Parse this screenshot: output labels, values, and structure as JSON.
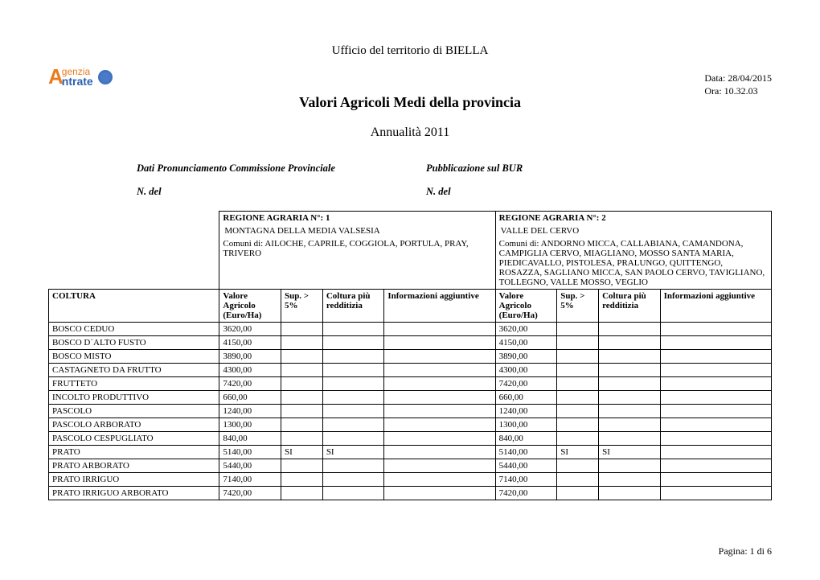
{
  "header": {
    "ufficio": "Ufficio del territorio di  BIELLA",
    "data_label": "Data: 28/04/2015",
    "ora_label": "Ora: 10.32.03",
    "title": "Valori Agricoli Medi della provincia",
    "annualita": "Annualità  2011"
  },
  "meta": {
    "dati_pronunciamento": "Dati Pronunciamento Commissione Provinciale",
    "pubblicazione": "Pubblicazione sul BUR",
    "n_del_left": "N. del",
    "n_del_right": "N. del"
  },
  "regions": {
    "r1": {
      "header": "REGIONE AGRARIA N°:  1",
      "name": "MONTAGNA DELLA MEDIA VALSESIA",
      "comuni": "Comuni di: AILOCHE, CAPRILE, COGGIOLA, PORTULA, PRAY, TRIVERO"
    },
    "r2": {
      "header": "REGIONE AGRARIA N°: 2",
      "name": "VALLE DEL CERVO",
      "comuni": "Comuni di: ANDORNO MICCA, CALLABIANA, CAMANDONA, CAMPIGLIA CERVO, MIAGLIANO, MOSSO SANTA MARIA, PIEDICAVALLO, PISTOLESA, PRALUNGO, QUITTENGO, ROSAZZA, SAGLIANO MICCA, SAN PAOLO CERVO, TAVIGLIANO, TOLLEGNO, VALLE MOSSO, VEGLIO"
    }
  },
  "columns": {
    "coltura": "COLTURA",
    "valore": "Valore Agricolo (Euro/Ha)",
    "sup": "Sup. > 5%",
    "redditizia": "Coltura più redditizia",
    "info": "Informazioni aggiuntive"
  },
  "rows": [
    {
      "coltura": "BOSCO CEDUO",
      "v1": "3620,00",
      "s1": "",
      "r1": "",
      "i1": "",
      "v2": "3620,00",
      "s2": "",
      "r2": "",
      "i2": ""
    },
    {
      "coltura": "BOSCO D`ALTO FUSTO",
      "v1": "4150,00",
      "s1": "",
      "r1": "",
      "i1": "",
      "v2": "4150,00",
      "s2": "",
      "r2": "",
      "i2": ""
    },
    {
      "coltura": "BOSCO MISTO",
      "v1": "3890,00",
      "s1": "",
      "r1": "",
      "i1": "",
      "v2": "3890,00",
      "s2": "",
      "r2": "",
      "i2": ""
    },
    {
      "coltura": "CASTAGNETO DA FRUTTO",
      "v1": "4300,00",
      "s1": "",
      "r1": "",
      "i1": "",
      "v2": "4300,00",
      "s2": "",
      "r2": "",
      "i2": ""
    },
    {
      "coltura": "FRUTTETO",
      "v1": "7420,00",
      "s1": "",
      "r1": "",
      "i1": "",
      "v2": "7420,00",
      "s2": "",
      "r2": "",
      "i2": ""
    },
    {
      "coltura": "INCOLTO PRODUTTIVO",
      "v1": "660,00",
      "s1": "",
      "r1": "",
      "i1": "",
      "v2": "660,00",
      "s2": "",
      "r2": "",
      "i2": ""
    },
    {
      "coltura": "PASCOLO",
      "v1": "1240,00",
      "s1": "",
      "r1": "",
      "i1": "",
      "v2": "1240,00",
      "s2": "",
      "r2": "",
      "i2": ""
    },
    {
      "coltura": "PASCOLO ARBORATO",
      "v1": "1300,00",
      "s1": "",
      "r1": "",
      "i1": "",
      "v2": "1300,00",
      "s2": "",
      "r2": "",
      "i2": ""
    },
    {
      "coltura": "PASCOLO CESPUGLIATO",
      "v1": "840,00",
      "s1": "",
      "r1": "",
      "i1": "",
      "v2": "840,00",
      "s2": "",
      "r2": "",
      "i2": ""
    },
    {
      "coltura": "PRATO",
      "v1": "5140,00",
      "s1": "SI",
      "r1": "SI",
      "i1": "",
      "v2": "5140,00",
      "s2": "SI",
      "r2": "SI",
      "i2": ""
    },
    {
      "coltura": "PRATO ARBORATO",
      "v1": "5440,00",
      "s1": "",
      "r1": "",
      "i1": "",
      "v2": "5440,00",
      "s2": "",
      "r2": "",
      "i2": ""
    },
    {
      "coltura": "PRATO IRRIGUO",
      "v1": "7140,00",
      "s1": "",
      "r1": "",
      "i1": "",
      "v2": "7140,00",
      "s2": "",
      "r2": "",
      "i2": ""
    },
    {
      "coltura": "PRATO IRRIGUO ARBORATO",
      "v1": "7420,00",
      "s1": "",
      "r1": "",
      "i1": "",
      "v2": "7420,00",
      "s2": "",
      "r2": "",
      "i2": ""
    }
  ],
  "footer": {
    "pagina": "Pagina: 1 di 6"
  }
}
